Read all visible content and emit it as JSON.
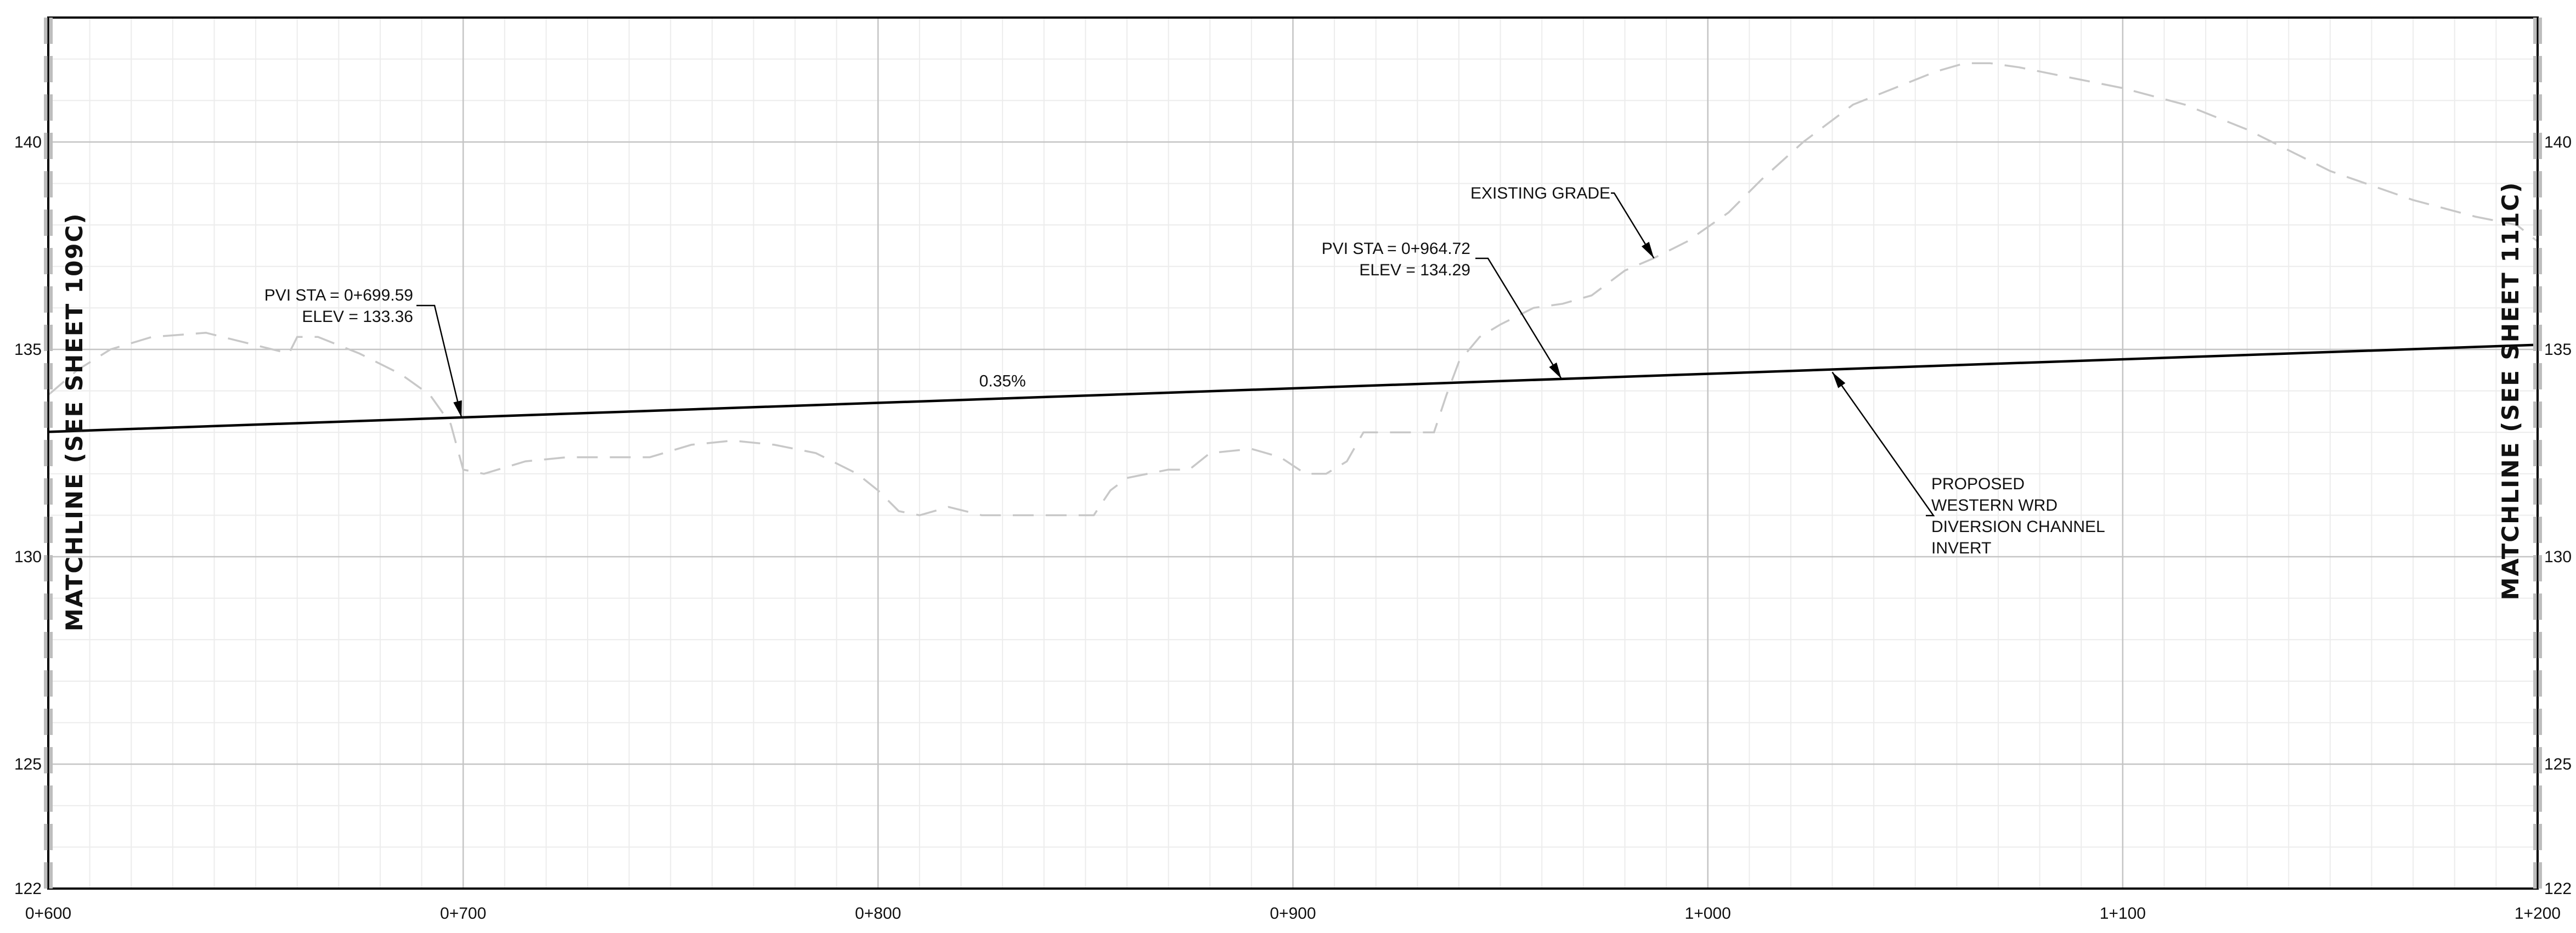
{
  "chart_data": {
    "type": "line",
    "x_axis": {
      "range": [
        600,
        1200
      ],
      "tick_values": [
        600,
        700,
        800,
        900,
        1000,
        1100,
        1200
      ],
      "tick_labels": [
        "0+600",
        "0+700",
        "0+800",
        "0+900",
        "1+000",
        "1+100",
        "1+200"
      ]
    },
    "y_axis": {
      "range": [
        122,
        143
      ],
      "tick_values": [
        122,
        125,
        130,
        135,
        140
      ],
      "tick_labels": [
        "122",
        "125",
        "130",
        "135",
        "140"
      ]
    },
    "grid": true,
    "series": [
      {
        "name": "EXISTING GRADE",
        "style": "dashed",
        "color": "#c8c8c8",
        "x": [
          600,
          607,
          615,
          625,
          638,
          650,
          658,
          660,
          665,
          675,
          685,
          692,
          697,
          700,
          705,
          715,
          725,
          735,
          745,
          755,
          765,
          775,
          785,
          795,
          800,
          805,
          810,
          817,
          825,
          835,
          845,
          852,
          856,
          860,
          870,
          875,
          880,
          890,
          897,
          903,
          908,
          913,
          917,
          920,
          930,
          934,
          937,
          940,
          945,
          950,
          958,
          965,
          972,
          980,
          987,
          995,
          1005,
          1013,
          1023,
          1035,
          1045,
          1055,
          1062,
          1068,
          1075,
          1085,
          1100,
          1115,
          1130,
          1150,
          1170,
          1185,
          1195,
          1200
        ],
        "y": [
          133.9,
          134.5,
          135.0,
          135.3,
          135.4,
          135.1,
          134.9,
          135.3,
          135.3,
          134.9,
          134.4,
          133.9,
          133.2,
          132.1,
          132.0,
          132.3,
          132.4,
          132.4,
          132.4,
          132.7,
          132.8,
          132.7,
          132.5,
          132.0,
          131.6,
          131.1,
          131.0,
          131.2,
          131.0,
          131.0,
          131.0,
          131.0,
          131.6,
          131.9,
          132.1,
          132.1,
          132.5,
          132.6,
          132.4,
          132.0,
          132.0,
          132.3,
          133.0,
          133.0,
          133.0,
          133.0,
          133.9,
          134.7,
          135.3,
          135.6,
          136.0,
          136.1,
          136.3,
          136.9,
          137.2,
          137.6,
          138.3,
          139.1,
          140.0,
          140.9,
          141.3,
          141.7,
          141.9,
          141.9,
          141.8,
          141.6,
          141.3,
          140.9,
          140.3,
          139.3,
          138.6,
          138.2,
          138.0,
          137.6
        ]
      },
      {
        "name": "PROPOSED WESTERN WRD DIVERSION CHANNEL INVERT",
        "style": "solid",
        "color": "#000000",
        "x": [
          600,
          1200
        ],
        "y": [
          133.01,
          135.11
        ]
      }
    ],
    "grade_label": "0.35%",
    "annotations": [
      {
        "id": "pvi_left",
        "lines": [
          "PVI STA = 0+699.59",
          "ELEV =  133.36"
        ],
        "target": [
          699.59,
          133.36
        ]
      },
      {
        "id": "pvi_right",
        "lines": [
          "PVI STA = 0+964.72",
          "ELEV =  134.29"
        ],
        "target": [
          964.72,
          134.29
        ]
      },
      {
        "id": "existing_grade",
        "lines": [
          "EXISTING GRADE"
        ],
        "target": [
          987,
          137.2
        ]
      },
      {
        "id": "proposed",
        "lines": [
          "PROPOSED",
          "WESTERN WRD",
          "DIVERSION CHANNEL",
          "INVERT"
        ],
        "target": [
          1030,
          134.45
        ]
      }
    ],
    "matchlines": {
      "left": "MATCHLINE (SEE SHEET 109C)",
      "right": "MATCHLINE (SEE SHEET 111C)"
    }
  }
}
